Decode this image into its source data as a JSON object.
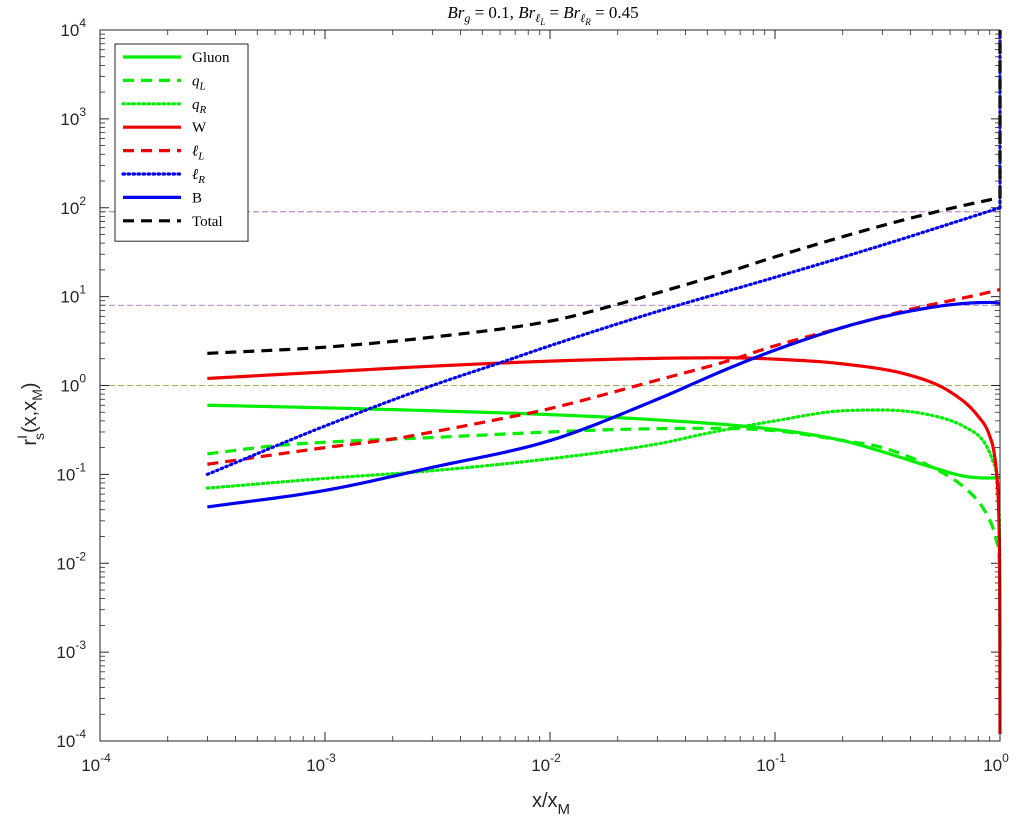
{
  "chart_data": {
    "type": "line",
    "title": "Br_g = 0.1, Br_ℓL = Br_ℓR = 0.45",
    "title_parts": {
      "a": "Br",
      "a_sub": "g",
      "a_rest": " = 0.1, ",
      "b": "Br",
      "b_sub": "ℓ",
      "b_subsub": "L",
      "b_rest": " = ",
      "c": "Br",
      "c_sub": "ℓ",
      "c_subsub": "R",
      "c_rest": " = 0.45"
    },
    "xlabel": {
      "base": "x/x",
      "sub": "M"
    },
    "ylabel": {
      "base": "r",
      "sup": "I",
      "sub": "s",
      "rest": "(x,x",
      "rest_sub": "M",
      "close": ")"
    },
    "xscale": "log",
    "yscale": "log",
    "xlim": [
      0.0001,
      1
    ],
    "ylim": [
      0.0001,
      10000
    ],
    "x_ticks": [
      {
        "base": "10",
        "exp": "-4"
      },
      {
        "base": "10",
        "exp": "-3"
      },
      {
        "base": "10",
        "exp": "-2"
      },
      {
        "base": "10",
        "exp": "-1"
      },
      {
        "base": "10",
        "exp": "0"
      }
    ],
    "y_ticks": [
      {
        "base": "10",
        "exp": "-4"
      },
      {
        "base": "10",
        "exp": "-3"
      },
      {
        "base": "10",
        "exp": "-2"
      },
      {
        "base": "10",
        "exp": "-1"
      },
      {
        "base": "10",
        "exp": "0"
      },
      {
        "base": "10",
        "exp": "1"
      },
      {
        "base": "10",
        "exp": "2"
      },
      {
        "base": "10",
        "exp": "3"
      },
      {
        "base": "10",
        "exp": "4"
      }
    ],
    "reference_lines": [
      {
        "y": 1,
        "color": "#8a9a2a"
      },
      {
        "y": 8,
        "color": "#9b59b6"
      },
      {
        "y": 90,
        "color": "#9b59b6"
      }
    ],
    "legend_position": "top-left",
    "grid": false,
    "series": [
      {
        "name": "Gluon",
        "sub": "",
        "italic": false,
        "color": "#00ee00",
        "dash": "solid",
        "x": [
          0.0003,
          0.001,
          0.003,
          0.01,
          0.03,
          0.1,
          0.2,
          0.3,
          0.5,
          0.7,
          0.9,
          0.97,
          0.999,
          1.0
        ],
        "y": [
          0.6,
          0.56,
          0.52,
          0.47,
          0.41,
          0.32,
          0.24,
          0.18,
          0.12,
          0.095,
          0.091,
          0.092,
          0.093,
          0.093
        ]
      },
      {
        "name": "q",
        "sub": "L",
        "italic": true,
        "color": "#00ee00",
        "dash": "dashed",
        "x": [
          0.0003,
          0.0006,
          0.001,
          0.003,
          0.01,
          0.02,
          0.05,
          0.1,
          0.2,
          0.3,
          0.5,
          0.7,
          0.85,
          0.93,
          0.97,
          0.99,
          0.997,
          1.0
        ],
        "y": [
          0.17,
          0.21,
          0.23,
          0.26,
          0.3,
          0.32,
          0.33,
          0.31,
          0.24,
          0.2,
          0.12,
          0.07,
          0.04,
          0.025,
          0.017,
          0.012,
          0.005,
          0.0011
        ]
      },
      {
        "name": "q",
        "sub": "R",
        "italic": true,
        "color": "#00ee00",
        "dash": "dotted",
        "x": [
          0.0003,
          0.001,
          0.003,
          0.01,
          0.03,
          0.05,
          0.1,
          0.2,
          0.3,
          0.5,
          0.7,
          0.85,
          0.93,
          0.97,
          0.99,
          0.997,
          1.0
        ],
        "y": [
          0.07,
          0.09,
          0.11,
          0.15,
          0.22,
          0.29,
          0.4,
          0.52,
          0.53,
          0.46,
          0.34,
          0.23,
          0.14,
          0.09,
          0.04,
          0.012,
          0.0012
        ]
      },
      {
        "name": "W",
        "sub": "",
        "italic": false,
        "color": "#ee0000",
        "dash": "solid",
        "x": [
          0.0003,
          0.001,
          0.003,
          0.01,
          0.03,
          0.06,
          0.1,
          0.2,
          0.4,
          0.6,
          0.8,
          0.9,
          0.95,
          0.98,
          0.99,
          0.995,
          0.998,
          1.0
        ],
        "y": [
          1.2,
          1.42,
          1.65,
          1.88,
          2.02,
          2.05,
          1.98,
          1.75,
          1.3,
          0.85,
          0.45,
          0.27,
          0.15,
          0.06,
          0.028,
          0.012,
          0.003,
          0.00012
        ]
      },
      {
        "name": "ℓ",
        "sub": "L",
        "italic": true,
        "color": "#ee0000",
        "dash": "dashed",
        "x": [
          0.0003,
          0.001,
          0.002,
          0.003,
          0.006,
          0.01,
          0.03,
          0.06,
          0.1,
          0.2,
          0.4,
          0.6,
          0.8,
          1.0
        ],
        "y": [
          0.13,
          0.2,
          0.25,
          0.3,
          0.42,
          0.55,
          1.15,
          1.85,
          2.8,
          4.5,
          7.2,
          9.0,
          10.5,
          12.0
        ]
      },
      {
        "name": "ℓ",
        "sub": "R",
        "italic": true,
        "color": "#0000ee",
        "dash": "dotted",
        "x": [
          0.0003,
          0.001,
          0.003,
          0.006,
          0.01,
          0.03,
          0.1,
          0.3,
          1.0
        ],
        "y": [
          0.1,
          0.35,
          1.0,
          1.8,
          2.8,
          6.8,
          16.5,
          38.0,
          100.0
        ]
      },
      {
        "name": "B",
        "sub": "",
        "italic": false,
        "color": "#0000ee",
        "dash": "solid",
        "x": [
          0.0003,
          0.001,
          0.003,
          0.01,
          0.03,
          0.06,
          0.1,
          0.2,
          0.3,
          0.5,
          0.7,
          0.9,
          0.97,
          1.0
        ],
        "y": [
          0.043,
          0.066,
          0.12,
          0.24,
          0.7,
          1.5,
          2.5,
          4.5,
          5.9,
          7.6,
          8.4,
          8.6,
          8.5,
          8.4
        ]
      },
      {
        "name": "Total",
        "sub": "",
        "italic": false,
        "color": "#000000",
        "dash": "dashed",
        "x": [
          0.0003,
          0.001,
          0.003,
          0.01,
          0.02,
          0.03,
          0.06,
          0.1,
          0.3,
          0.6,
          1.0
        ],
        "y": [
          2.3,
          2.7,
          3.5,
          5.3,
          8.2,
          11.0,
          18.5,
          28.0,
          63.0,
          98.0,
          130.0
        ]
      },
      {
        "name": "",
        "legend": false,
        "color": "#0000ee",
        "dash": "dotted",
        "x": [
          1.0,
          1.0
        ],
        "y": [
          100.0,
          9000.0
        ]
      },
      {
        "name": "",
        "legend": false,
        "color": "#000000",
        "dash": "dashed",
        "x": [
          1.0,
          1.0
        ],
        "y": [
          130.0,
          10000.0
        ]
      }
    ]
  }
}
